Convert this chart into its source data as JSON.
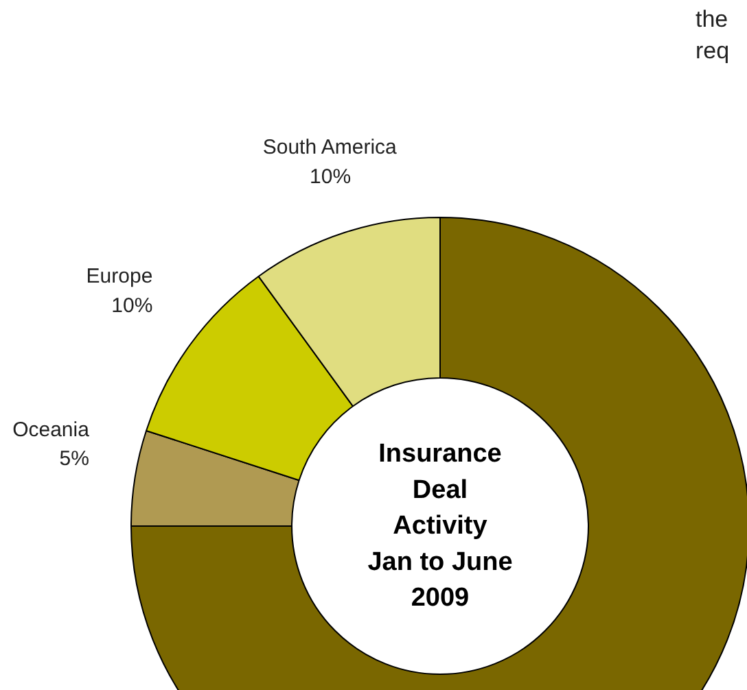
{
  "chart_data": {
    "type": "donut",
    "title": "Insurance Deal Activity Jan to June 2009",
    "categories": [
      null,
      "Oceania",
      "Europe",
      "South America"
    ],
    "values": [
      75,
      5,
      10,
      10
    ],
    "value_labels": [
      null,
      "5%",
      "10%",
      "10%"
    ],
    "colors": [
      "#7a6700",
      "#b09a52",
      "#cccc00",
      "#e0dd80"
    ],
    "annotations": [
      "the",
      "req"
    ]
  }
}
